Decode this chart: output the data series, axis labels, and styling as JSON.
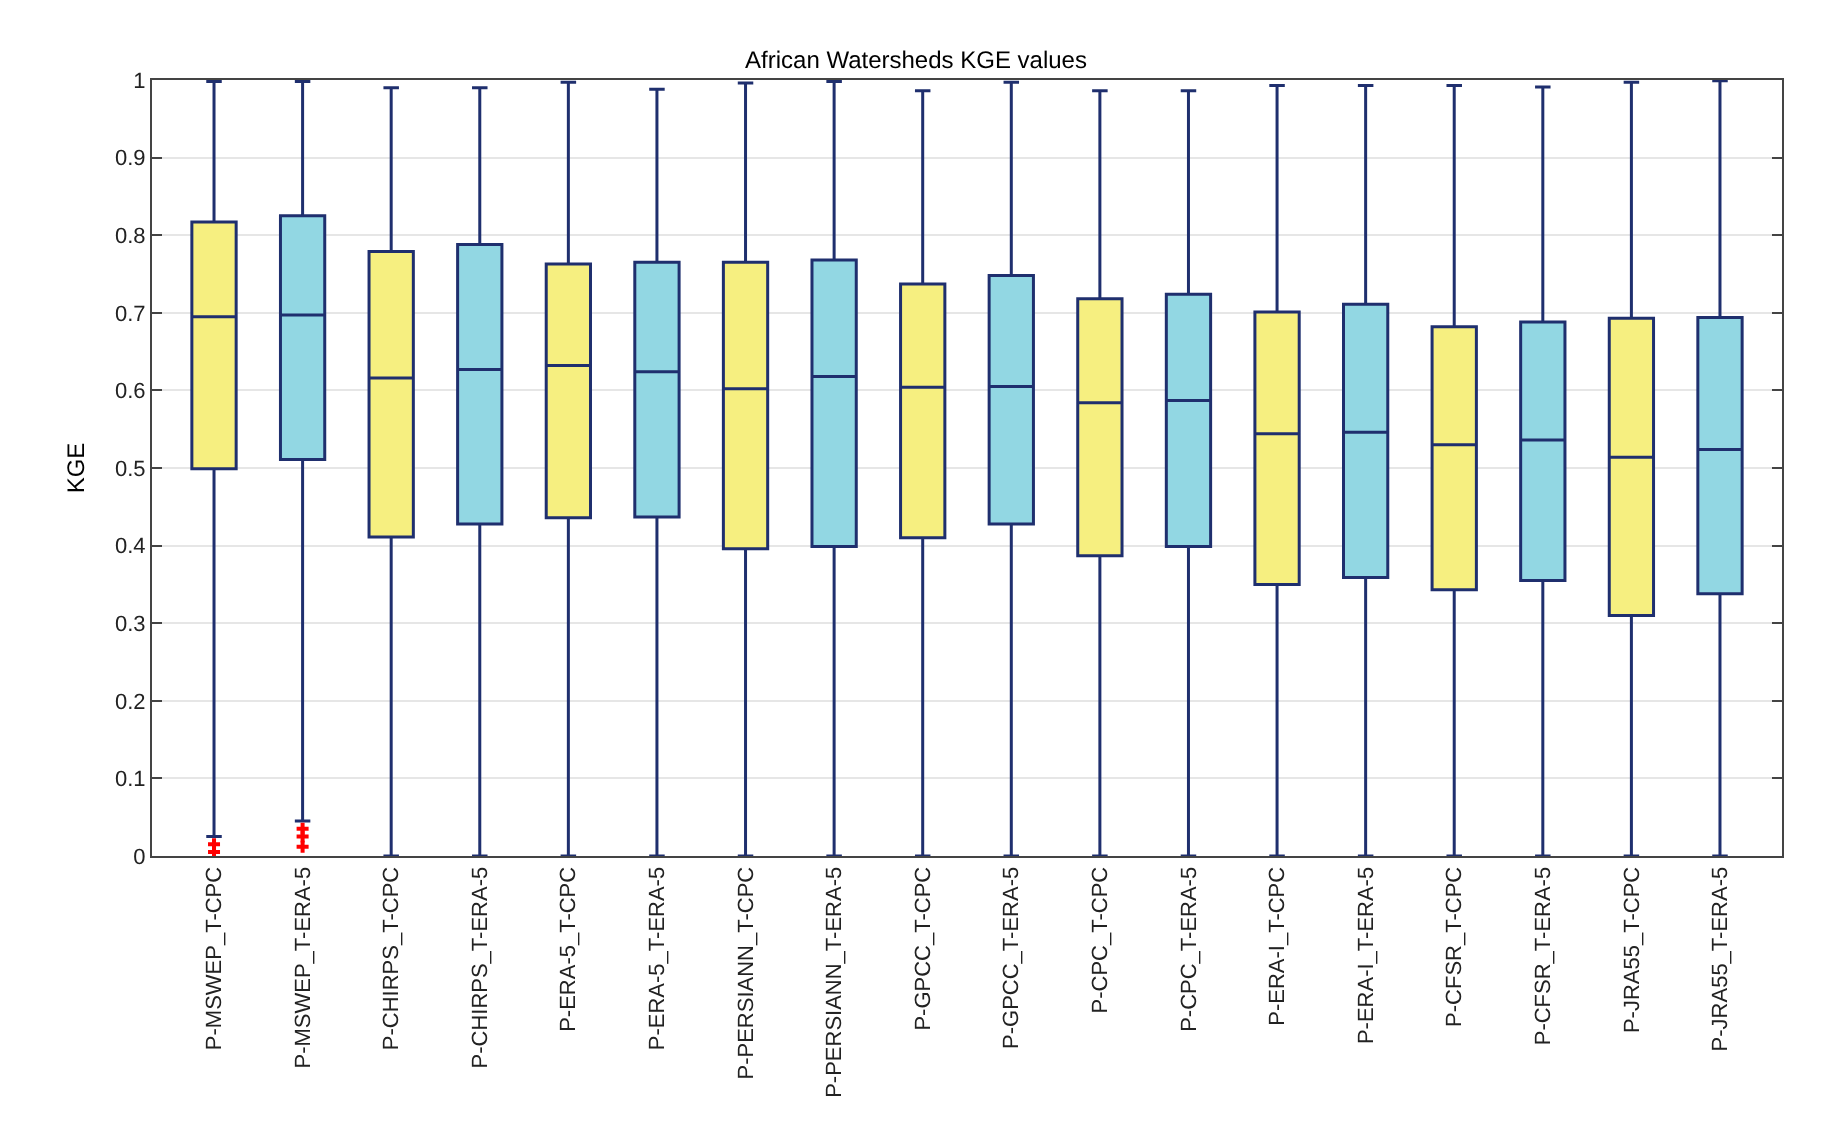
{
  "chart_data": {
    "type": "box",
    "title": "African Watersheds KGE values",
    "ylabel": "KGE",
    "categories": [
      "P-MSWEP_T-CPC",
      "P-MSWEP_T-ERA-5",
      "P-CHIRPS_T-CPC",
      "P-CHIRPS_T-ERA-5",
      "P-ERA-5_T-CPC",
      "P-ERA-5_T-ERA-5",
      "P-PERSIANN_T-CPC",
      "P-PERSIANN_T-ERA-5",
      "P-GPCC_T-CPC",
      "P-GPCC_T-ERA-5",
      "P-CPC_T-CPC",
      "P-CPC_T-ERA-5",
      "P-ERA-I_T-CPC",
      "P-ERA-I_T-ERA-5",
      "P-CFSR_T-CPC",
      "P-CFSR_T-ERA-5",
      "P-JRA55_T-CPC",
      "P-JRA55_T-ERA-5"
    ],
    "colors": [
      "#f6ef80",
      "#92d7e3",
      "#f6ef80",
      "#92d7e3",
      "#f6ef80",
      "#92d7e3",
      "#f6ef80",
      "#92d7e3",
      "#f6ef80",
      "#92d7e3",
      "#f6ef80",
      "#92d7e3",
      "#f6ef80",
      "#92d7e3",
      "#f6ef80",
      "#92d7e3",
      "#f6ef80",
      "#92d7e3"
    ],
    "boxes": [
      {
        "low": 0.025,
        "q1": 0.499,
        "median": 0.695,
        "q3": 0.817,
        "high": 0.998,
        "outliers": [
          0.015,
          0.005
        ]
      },
      {
        "low": 0.045,
        "q1": 0.511,
        "median": 0.697,
        "q3": 0.825,
        "high": 0.998,
        "outliers": [
          0.035,
          0.025,
          0.012
        ]
      },
      {
        "low": 0,
        "q1": 0.411,
        "median": 0.616,
        "q3": 0.779,
        "high": 0.99
      },
      {
        "low": 0,
        "q1": 0.428,
        "median": 0.627,
        "q3": 0.788,
        "high": 0.99
      },
      {
        "low": 0,
        "q1": 0.436,
        "median": 0.632,
        "q3": 0.763,
        "high": 0.997
      },
      {
        "low": 0,
        "q1": 0.437,
        "median": 0.624,
        "q3": 0.765,
        "high": 0.988
      },
      {
        "low": 0,
        "q1": 0.396,
        "median": 0.602,
        "q3": 0.765,
        "high": 0.996
      },
      {
        "low": 0,
        "q1": 0.399,
        "median": 0.618,
        "q3": 0.768,
        "high": 0.998
      },
      {
        "low": 0,
        "q1": 0.41,
        "median": 0.604,
        "q3": 0.737,
        "high": 0.986
      },
      {
        "low": 0,
        "q1": 0.428,
        "median": 0.605,
        "q3": 0.748,
        "high": 0.997
      },
      {
        "low": 0,
        "q1": 0.387,
        "median": 0.584,
        "q3": 0.718,
        "high": 0.986
      },
      {
        "low": 0,
        "q1": 0.399,
        "median": 0.587,
        "q3": 0.724,
        "high": 0.986
      },
      {
        "low": 0,
        "q1": 0.35,
        "median": 0.544,
        "q3": 0.701,
        "high": 0.993
      },
      {
        "low": 0,
        "q1": 0.359,
        "median": 0.546,
        "q3": 0.711,
        "high": 0.993
      },
      {
        "low": 0,
        "q1": 0.343,
        "median": 0.53,
        "q3": 0.682,
        "high": 0.993
      },
      {
        "low": 0,
        "q1": 0.355,
        "median": 0.536,
        "q3": 0.688,
        "high": 0.991
      },
      {
        "low": 0,
        "q1": 0.31,
        "median": 0.514,
        "q3": 0.693,
        "high": 0.997
      },
      {
        "low": 0,
        "q1": 0.338,
        "median": 0.524,
        "q3": 0.694,
        "high": 0.999
      }
    ],
    "ylim": [
      0,
      1
    ],
    "yticks": [
      0,
      0.1,
      0.2,
      0.3,
      0.4,
      0.5,
      0.6,
      0.7,
      0.8,
      0.9,
      1
    ],
    "grid": true
  }
}
